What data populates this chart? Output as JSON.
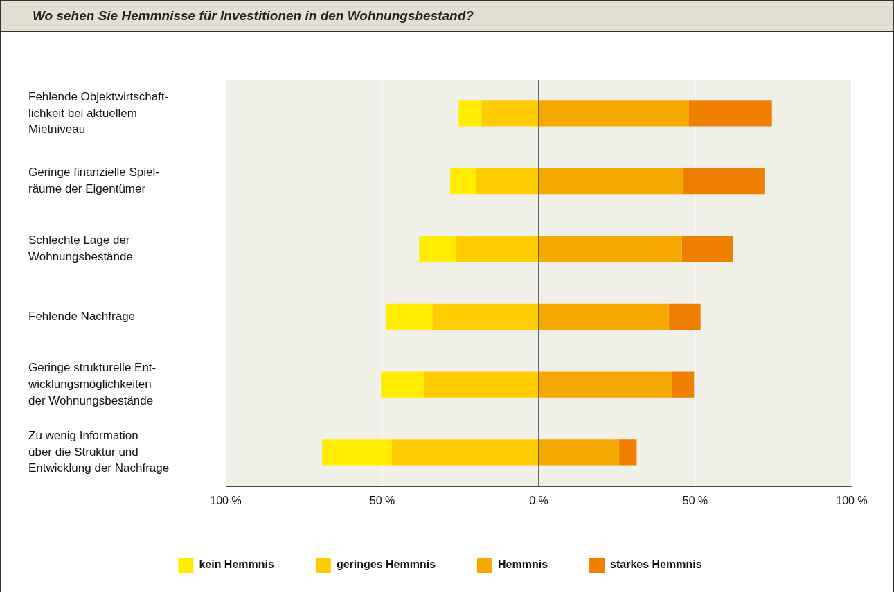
{
  "chart_data": {
    "type": "bar",
    "orientation": "horizontal",
    "title": "Wo sehen Sie Hemmnisse für Investitionen in den Wohnungsbestand?",
    "categories": [
      "Fehlende Objektwirtschaft-\nlichkeit bei aktuellem\nMietniveau",
      "Geringe finanzielle Spiel-\nräume der Eigentümer",
      "Schlechte Lage der\nWohnungsbestände",
      "Fehlende Nachfrage",
      "Geringe strukturelle Ent-\nwicklungsmöglichkeiten\nder Wohnungsbestände",
      "Zu wenig Information\nüber die Struktur und\nEntwicklung der Nachfrage"
    ],
    "series": [
      {
        "name": "kein Hemmnis",
        "color": "#ffec00",
        "values": [
          7.3,
          8.2,
          11.7,
          14.8,
          13.7,
          22.3
        ],
        "base": [
          -25.6,
          -28.3,
          -38.2,
          -48.8,
          -50.4,
          -69.2
        ]
      },
      {
        "name": "geringes Hemmnis",
        "color": "#ffcc00",
        "values": [
          18.3,
          20.1,
          26.5,
          34.0,
          36.7,
          46.9
        ],
        "base": [
          -18.3,
          -20.1,
          -26.5,
          -34.0,
          -36.7,
          -46.9
        ]
      },
      {
        "name": "Hemmnis",
        "color": "#f5a800",
        "values": [
          48.0,
          46.0,
          45.7,
          41.5,
          42.7,
          25.6
        ],
        "base": [
          0,
          0,
          0,
          0,
          0,
          0
        ]
      },
      {
        "name": "starkes Hemmnis",
        "color": "#ee7f00",
        "values": [
          26.5,
          26.1,
          16.4,
          10.2,
          6.9,
          5.7
        ],
        "base": [
          48.0,
          46.0,
          45.7,
          41.5,
          42.7,
          25.6
        ]
      }
    ],
    "xlim": [
      -100,
      100
    ],
    "xticks": [
      {
        "value": -100,
        "label": "100 %"
      },
      {
        "value": -50,
        "label": "50 %"
      },
      {
        "value": 0,
        "label": "0 %"
      },
      {
        "value": 50,
        "label": "50 %"
      },
      {
        "value": 100,
        "label": "100 %"
      }
    ],
    "grid": "x",
    "legend": "bottom",
    "ref_lines": [
      {
        "axis": "x",
        "value": 0,
        "color": "#000000"
      }
    ]
  }
}
